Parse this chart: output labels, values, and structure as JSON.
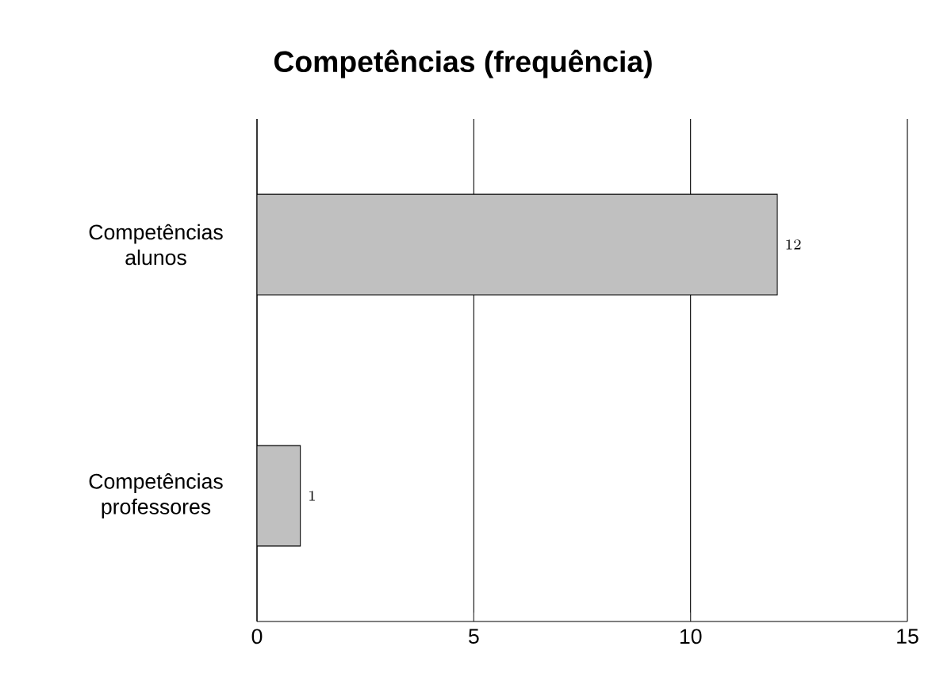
{
  "chart_data": {
    "type": "bar",
    "orientation": "horizontal",
    "title": "Competências (frequência)",
    "categories": [
      "Competências alunos",
      "Competências professores"
    ],
    "values": [
      12,
      1
    ],
    "color": "#c0c0c0",
    "xlim": [
      0,
      15
    ],
    "xticks": [
      0,
      5,
      10,
      15
    ],
    "grid": "x",
    "data_labels": true
  }
}
